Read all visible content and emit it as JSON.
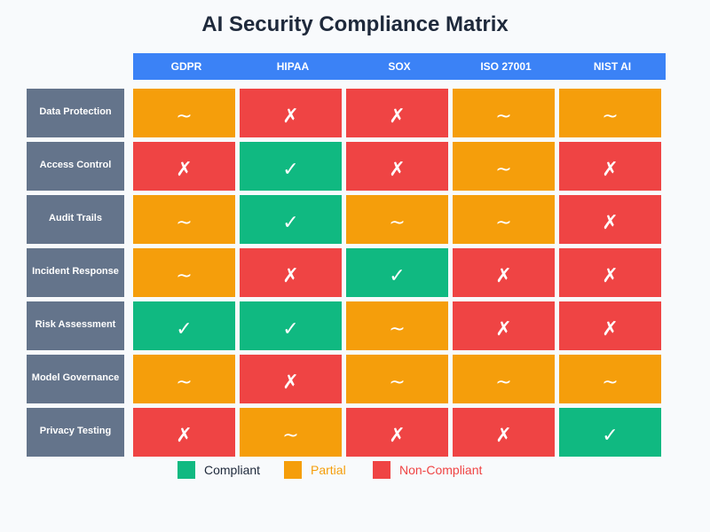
{
  "title": "AI Security Compliance Matrix",
  "colors": {
    "header": "#3b82f6",
    "row_label": "#64748b",
    "compliant": "#10b981",
    "partial": "#f59e0b",
    "non_compliant": "#ef4444",
    "legend_text_compliant": "#1e293b",
    "legend_text_partial": "#f59e0b",
    "legend_text_non_compliant": "#ef4444"
  },
  "symbols": {
    "compliant": "✓",
    "partial": "~",
    "non_compliant": "✗"
  },
  "columns": [
    "GDPR",
    "HIPAA",
    "SOX",
    "ISO 27001",
    "NIST AI"
  ],
  "rows": [
    {
      "label": "Data Protection",
      "statuses": [
        "partial",
        "non_compliant",
        "non_compliant",
        "partial",
        "partial"
      ]
    },
    {
      "label": "Access Control",
      "statuses": [
        "non_compliant",
        "compliant",
        "non_compliant",
        "partial",
        "non_compliant"
      ]
    },
    {
      "label": "Audit Trails",
      "statuses": [
        "partial",
        "compliant",
        "partial",
        "partial",
        "non_compliant"
      ]
    },
    {
      "label": "Incident Response",
      "statuses": [
        "partial",
        "non_compliant",
        "compliant",
        "non_compliant",
        "non_compliant"
      ]
    },
    {
      "label": "Risk Assessment",
      "statuses": [
        "compliant",
        "compliant",
        "partial",
        "non_compliant",
        "non_compliant"
      ]
    },
    {
      "label": "Model Governance",
      "statuses": [
        "partial",
        "non_compliant",
        "partial",
        "partial",
        "partial"
      ]
    },
    {
      "label": "Privacy Testing",
      "statuses": [
        "non_compliant",
        "partial",
        "non_compliant",
        "non_compliant",
        "compliant"
      ]
    }
  ],
  "legend": [
    {
      "key": "compliant",
      "label": "Compliant"
    },
    {
      "key": "partial",
      "label": "Partial"
    },
    {
      "key": "non_compliant",
      "label": "Non-Compliant"
    }
  ]
}
